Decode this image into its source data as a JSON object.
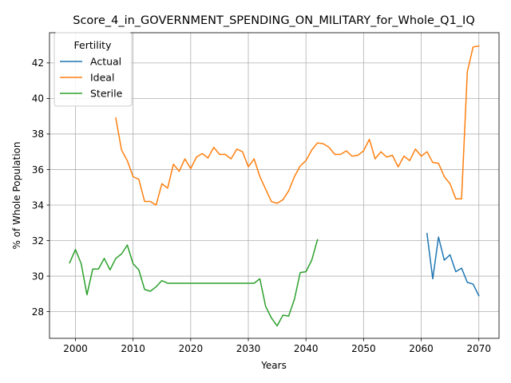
{
  "chart_data": {
    "type": "line",
    "title": "Score_4_in_GOVERNMENT_SPENDING_ON_MILITARY_for_Whole_Q1_IQ",
    "xlabel": "Years",
    "ylabel": "% of Whole Population",
    "xlim": [
      1995.5,
      2073.5
    ],
    "ylim": [
      26.5,
      43.7
    ],
    "xticks": [
      2000,
      2010,
      2020,
      2030,
      2040,
      2050,
      2060,
      2070
    ],
    "yticks": [
      28,
      30,
      32,
      34,
      36,
      38,
      40,
      42
    ],
    "grid": true,
    "legend": {
      "title": "Fertility",
      "placement": "top-left"
    },
    "series": [
      {
        "name": "Actual",
        "color": "#1f77b4",
        "x": [
          2061,
          2062,
          2063,
          2064,
          2065,
          2066,
          2067,
          2068,
          2069,
          2070
        ],
        "y": [
          32.4,
          29.85,
          32.2,
          30.9,
          31.2,
          30.25,
          30.45,
          29.65,
          29.55,
          28.9
        ]
      },
      {
        "name": "Ideal",
        "color": "#ff7f0e",
        "x": [
          2007,
          2008,
          2009,
          2010,
          2011,
          2012,
          2013,
          2014,
          2015,
          2016,
          2017,
          2018,
          2019,
          2020,
          2021,
          2022,
          2023,
          2024,
          2025,
          2026,
          2027,
          2028,
          2029,
          2030,
          2031,
          2032,
          2033,
          2034,
          2035,
          2036,
          2037,
          2038,
          2039,
          2040,
          2041,
          2042,
          2043,
          2044,
          2045,
          2046,
          2047,
          2048,
          2049,
          2050,
          2051,
          2052,
          2053,
          2054,
          2055,
          2056,
          2057,
          2058,
          2059,
          2060,
          2061,
          2062,
          2063,
          2064,
          2065,
          2066,
          2067,
          2068,
          2069,
          2070
        ],
        "y": [
          38.9,
          37.1,
          36.5,
          35.6,
          35.45,
          34.2,
          34.2,
          34.0,
          35.2,
          34.95,
          36.3,
          35.9,
          36.6,
          36.05,
          36.7,
          36.9,
          36.65,
          37.25,
          36.85,
          36.85,
          36.6,
          37.15,
          37.0,
          36.15,
          36.6,
          35.6,
          34.9,
          34.2,
          34.1,
          34.3,
          34.8,
          35.6,
          36.2,
          36.5,
          37.1,
          37.5,
          37.45,
          37.25,
          36.85,
          36.85,
          37.05,
          36.75,
          36.8,
          37.05,
          37.7,
          36.6,
          37.0,
          36.7,
          36.8,
          36.15,
          36.75,
          36.5,
          37.15,
          36.75,
          37.0,
          36.4,
          36.35,
          35.6,
          35.2,
          34.35,
          34.35,
          41.5,
          42.9,
          42.95
        ]
      },
      {
        "name": "Sterile",
        "color": "#2ca02c",
        "x": [
          1999,
          2000,
          2001,
          2002,
          2003,
          2004,
          2005,
          2006,
          2007,
          2008,
          2009,
          2010,
          2011,
          2012,
          2013,
          2014,
          2015,
          2016,
          2017,
          2018,
          2019,
          2020,
          2021,
          2022,
          2023,
          2024,
          2025,
          2026,
          2027,
          2028,
          2029,
          2030,
          2031,
          2032,
          2033,
          2034,
          2035,
          2036,
          2037,
          2038,
          2039,
          2040,
          2041,
          2042
        ],
        "y": [
          30.75,
          31.5,
          30.7,
          28.95,
          30.4,
          30.4,
          31.0,
          30.35,
          31.0,
          31.25,
          31.75,
          30.7,
          30.35,
          29.25,
          29.15,
          29.4,
          29.75,
          29.6,
          29.6,
          29.6,
          29.6,
          29.6,
          29.6,
          29.6,
          29.6,
          29.6,
          29.6,
          29.6,
          29.6,
          29.6,
          29.6,
          29.6,
          29.6,
          29.85,
          28.3,
          27.65,
          27.2,
          27.8,
          27.75,
          28.7,
          30.2,
          30.25,
          30.9,
          32.05
        ]
      }
    ]
  }
}
